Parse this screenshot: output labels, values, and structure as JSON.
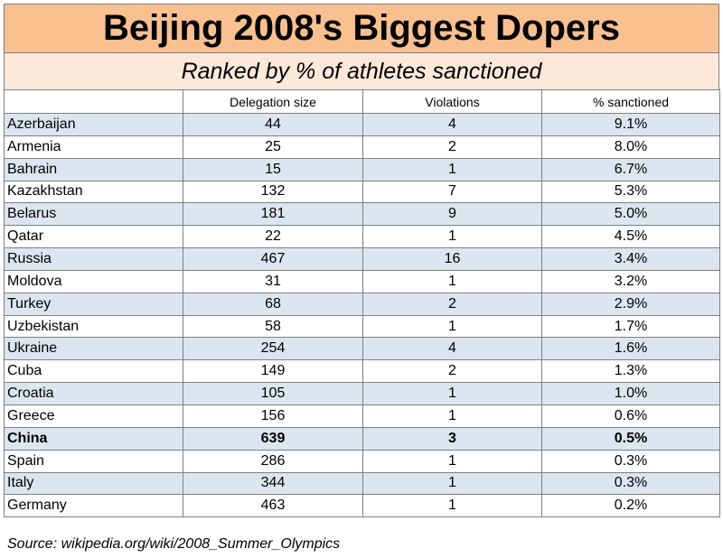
{
  "chart_data": {
    "type": "table",
    "title": "Beijing 2008's Biggest Dopers",
    "subtitle": "Ranked by % of athletes sanctioned",
    "columns": [
      "",
      "Delegation size",
      "Violations",
      "% sanctioned"
    ],
    "rows": [
      {
        "country": "Azerbaijan",
        "delegation": "44",
        "violations": "4",
        "pct": "9.1%"
      },
      {
        "country": "Armenia",
        "delegation": "25",
        "violations": "2",
        "pct": "8.0%"
      },
      {
        "country": "Bahrain",
        "delegation": "15",
        "violations": "1",
        "pct": "6.7%"
      },
      {
        "country": "Kazakhstan",
        "delegation": "132",
        "violations": "7",
        "pct": "5.3%"
      },
      {
        "country": "Belarus",
        "delegation": "181",
        "violations": "9",
        "pct": "5.0%"
      },
      {
        "country": "Qatar",
        "delegation": "22",
        "violations": "1",
        "pct": "4.5%"
      },
      {
        "country": "Russia",
        "delegation": "467",
        "violations": "16",
        "pct": "3.4%"
      },
      {
        "country": "Moldova",
        "delegation": "31",
        "violations": "1",
        "pct": "3.2%"
      },
      {
        "country": "Turkey",
        "delegation": "68",
        "violations": "2",
        "pct": "2.9%"
      },
      {
        "country": "Uzbekistan",
        "delegation": "58",
        "violations": "1",
        "pct": "1.7%"
      },
      {
        "country": "Ukraine",
        "delegation": "254",
        "violations": "4",
        "pct": "1.6%"
      },
      {
        "country": "Cuba",
        "delegation": "149",
        "violations": "2",
        "pct": "1.3%"
      },
      {
        "country": "Croatia",
        "delegation": "105",
        "violations": "1",
        "pct": "1.0%"
      },
      {
        "country": "Greece",
        "delegation": "156",
        "violations": "1",
        "pct": "0.6%"
      },
      {
        "country": "China",
        "delegation": "639",
        "violations": "3",
        "pct": "0.5%",
        "bold": true
      },
      {
        "country": "Spain",
        "delegation": "286",
        "violations": "1",
        "pct": "0.3%"
      },
      {
        "country": "Italy",
        "delegation": "344",
        "violations": "1",
        "pct": "0.3%"
      },
      {
        "country": "Germany",
        "delegation": "463",
        "violations": "1",
        "pct": "0.2%"
      }
    ],
    "source": "Source: wikipedia.org/wiki/2008_Summer_Olympics"
  },
  "colors": {
    "title_bg": "#fac090",
    "subtitle_bg": "#fde9d9",
    "stripe_bg": "#dce6f1",
    "border": "#7f7f7f"
  }
}
